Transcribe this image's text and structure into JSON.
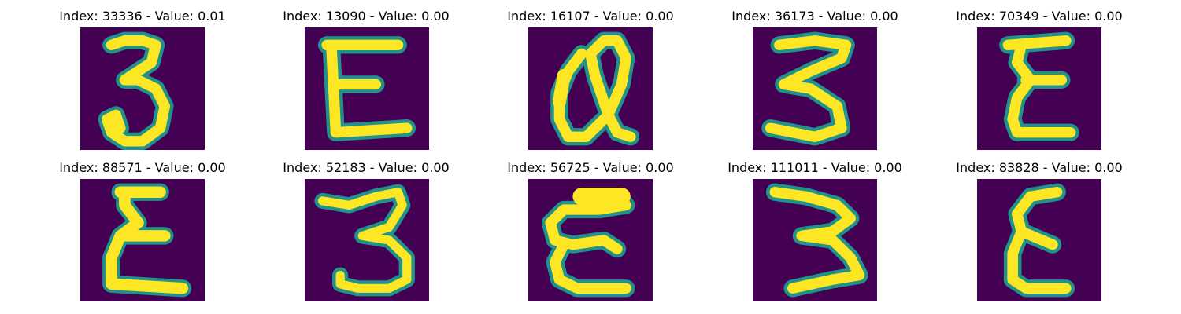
{
  "colors": {
    "background_pixel": "#440154",
    "mid_pixel": "#21918c",
    "bright_pixel": "#fde725"
  },
  "panels": [
    {
      "title": "Index: 33336 - Value: 0.01",
      "glyph": "3-classic"
    },
    {
      "title": "Index: 13090 - Value: 0.00",
      "glyph": "E-wide"
    },
    {
      "title": "Index: 16107 - Value: 0.00",
      "glyph": "Q-loop"
    },
    {
      "title": "Index: 36173 - Value: 0.00",
      "glyph": "3-zigzag"
    },
    {
      "title": "Index: 70349 - Value: 0.00",
      "glyph": "E-narrow"
    },
    {
      "title": "Index: 88571 - Value: 0.00",
      "glyph": "sigma-E"
    },
    {
      "title": "Index: 52183 - Value: 0.00",
      "glyph": "3-round"
    },
    {
      "title": "Index: 56725 - Value: 0.00",
      "glyph": "E-curve"
    },
    {
      "title": "Index: 111011 - Value: 0.00",
      "glyph": "3-zigzag-2"
    },
    {
      "title": "Index: 83828 - Value: 0.00",
      "glyph": "E-tall"
    }
  ]
}
